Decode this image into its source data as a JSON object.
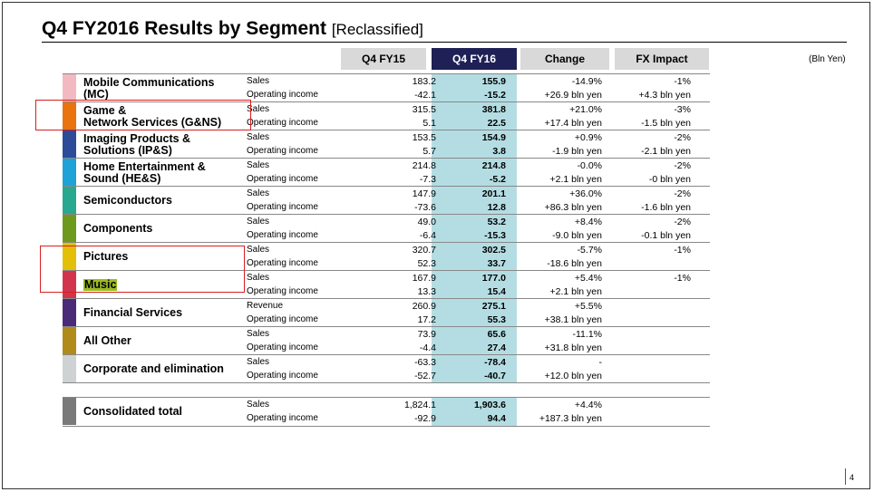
{
  "title": "Q4 FY2016  Results by Segment",
  "subtitle": "[Reclassified]",
  "unit": "(Bln Yen)",
  "page_number": "4",
  "columns": [
    "Q4 FY15",
    "Q4 FY16",
    "Change",
    "FX Impact"
  ],
  "segments": [
    {
      "name1": "Mobile Communications",
      "name2": "(MC)",
      "color": "#f3b9c0",
      "rows": [
        {
          "label": "Sales",
          "fy15": "183.2",
          "fy16": "155.9",
          "change": "-14.9%",
          "fx": "-1%"
        },
        {
          "label": "Operating income",
          "fy15": "-42.1",
          "fy16": "-15.2",
          "change": "+26.9 bln yen",
          "fx": "+4.3 bln yen"
        }
      ]
    },
    {
      "name1": "Game &",
      "name2": "Network Services (G&NS)",
      "color": "#e8730f",
      "rows": [
        {
          "label": "Sales",
          "fy15": "315.5",
          "fy16": "381.8",
          "change": "+21.0%",
          "fx": "-3%"
        },
        {
          "label": "Operating income",
          "fy15": "5.1",
          "fy16": "22.5",
          "change": "+17.4 bln yen",
          "fx": "-1.5 bln yen"
        }
      ]
    },
    {
      "name1": "Imaging Products &",
      "name2": "Solutions (IP&S)",
      "color": "#2e4b9a",
      "rows": [
        {
          "label": "Sales",
          "fy15": "153.5",
          "fy16": "154.9",
          "change": "+0.9%",
          "fx": "-2%"
        },
        {
          "label": "Operating income",
          "fy15": "5.7",
          "fy16": "3.8",
          "change": "-1.9 bln yen",
          "fx": "-2.1 bln yen"
        }
      ]
    },
    {
      "name1": "Home Entertainment &",
      "name2": "Sound (HE&S)",
      "color": "#1ea2d8",
      "rows": [
        {
          "label": "Sales",
          "fy15": "214.8",
          "fy16": "214.8",
          "change": "-0.0%",
          "fx": "-2%"
        },
        {
          "label": "Operating income",
          "fy15": "-7.3",
          "fy16": "-5.2",
          "change": "+2.1 bln yen",
          "fx": "-0 bln yen"
        }
      ]
    },
    {
      "name1": "Semiconductors",
      "name2": "",
      "color": "#27a88f",
      "rows": [
        {
          "label": "Sales",
          "fy15": "147.9",
          "fy16": "201.1",
          "change": "+36.0%",
          "fx": "-2%"
        },
        {
          "label": "Operating income",
          "fy15": "-73.6",
          "fy16": "12.8",
          "change": "+86.3 bln yen",
          "fx": "-1.6 bln yen"
        }
      ]
    },
    {
      "name1": "Components",
      "name2": "",
      "color": "#6d9a1d",
      "rows": [
        {
          "label": "Sales",
          "fy15": "49.0",
          "fy16": "53.2",
          "change": "+8.4%",
          "fx": "-2%"
        },
        {
          "label": "Operating income",
          "fy15": "-6.4",
          "fy16": "-15.3",
          "change": "-9.0 bln yen",
          "fx": "-0.1 bln yen"
        }
      ]
    },
    {
      "name1": "Pictures",
      "name2": "",
      "color": "#e3bf08",
      "rows": [
        {
          "label": "Sales",
          "fy15": "320.7",
          "fy16": "302.5",
          "change": "-5.7%",
          "fx": "-1%"
        },
        {
          "label": "Operating income",
          "fy15": "52.3",
          "fy16": "33.7",
          "change": "-18.6 bln yen",
          "fx": ""
        }
      ]
    },
    {
      "name1": "Music",
      "name2": "",
      "color": "#d2354b",
      "rows": [
        {
          "label": "Sales",
          "fy15": "167.9",
          "fy16": "177.0",
          "change": "+5.4%",
          "fx": "-1%"
        },
        {
          "label": "Operating income",
          "fy15": "13.3",
          "fy16": "15.4",
          "change": "+2.1 bln yen",
          "fx": ""
        }
      ]
    },
    {
      "name1": "Financial Services",
      "name2": "",
      "color": "#4b2b78",
      "rows": [
        {
          "label": "Revenue",
          "fy15": "260.9",
          "fy16": "275.1",
          "change": "+5.5%",
          "fx": ""
        },
        {
          "label": "Operating income",
          "fy15": "17.2",
          "fy16": "55.3",
          "change": "+38.1 bln yen",
          "fx": ""
        }
      ]
    },
    {
      "name1": "All Other",
      "name2": "",
      "color": "#b08b1a",
      "rows": [
        {
          "label": "Sales",
          "fy15": "73.9",
          "fy16": "65.6",
          "change": "-11.1%",
          "fx": ""
        },
        {
          "label": "Operating income",
          "fy15": "-4.4",
          "fy16": "27.4",
          "change": "+31.8 bln yen",
          "fx": ""
        }
      ]
    },
    {
      "name1": "Corporate and elimination",
      "name2": "",
      "color": "#cfd2d2",
      "rows": [
        {
          "label": "Sales",
          "fy15": "-63.3",
          "fy16": "-78.4",
          "change": "-",
          "fx": ""
        },
        {
          "label": "Operating income",
          "fy15": "-52.7",
          "fy16": "-40.7",
          "change": "+12.0 bln yen",
          "fx": ""
        }
      ]
    }
  ],
  "total": {
    "name1": "Consolidated total",
    "name2": "",
    "color": "#7a7a7a",
    "rows": [
      {
        "label": "Sales",
        "fy15": "1,824.1",
        "fy16": "1,903.6",
        "change": "+4.4%",
        "fx": ""
      },
      {
        "label": "Operating income",
        "fy15": "-92.9",
        "fy16": "94.4",
        "change": "+187.3 bln yen",
        "fx": ""
      }
    ]
  }
}
